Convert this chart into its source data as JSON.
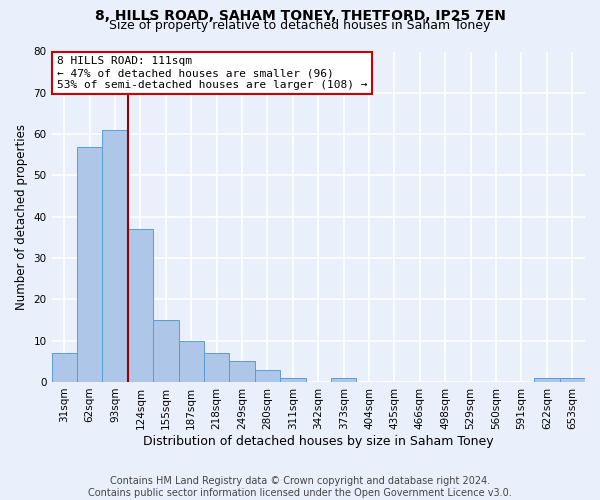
{
  "title1": "8, HILLS ROAD, SAHAM TONEY, THETFORD, IP25 7EN",
  "title2": "Size of property relative to detached houses in Saham Toney",
  "xlabel": "Distribution of detached houses by size in Saham Toney",
  "ylabel": "Number of detached properties",
  "categories": [
    "31sqm",
    "62sqm",
    "93sqm",
    "124sqm",
    "155sqm",
    "187sqm",
    "218sqm",
    "249sqm",
    "280sqm",
    "311sqm",
    "342sqm",
    "373sqm",
    "404sqm",
    "435sqm",
    "466sqm",
    "498sqm",
    "529sqm",
    "560sqm",
    "591sqm",
    "622sqm",
    "653sqm"
  ],
  "values": [
    7,
    57,
    61,
    37,
    15,
    10,
    7,
    5,
    3,
    1,
    0,
    1,
    0,
    0,
    0,
    0,
    0,
    0,
    0,
    1,
    1
  ],
  "bar_color": "#aec6e8",
  "bar_edge_color": "#5b9bd5",
  "bg_color": "#eaf0fb",
  "grid_color": "#ffffff",
  "vline_color": "#990000",
  "annotation_text": "8 HILLS ROAD: 111sqm\n← 47% of detached houses are smaller (96)\n53% of semi-detached houses are larger (108) →",
  "annotation_box_color": "#ffffff",
  "annotation_box_edge": "#cc0000",
  "ylim": [
    0,
    80
  ],
  "yticks": [
    0,
    10,
    20,
    30,
    40,
    50,
    60,
    70,
    80
  ],
  "footer": "Contains HM Land Registry data © Crown copyright and database right 2024.\nContains public sector information licensed under the Open Government Licence v3.0.",
  "title1_fontsize": 10,
  "title2_fontsize": 9,
  "xlabel_fontsize": 9,
  "ylabel_fontsize": 8.5,
  "tick_fontsize": 7.5,
  "footer_fontsize": 7
}
